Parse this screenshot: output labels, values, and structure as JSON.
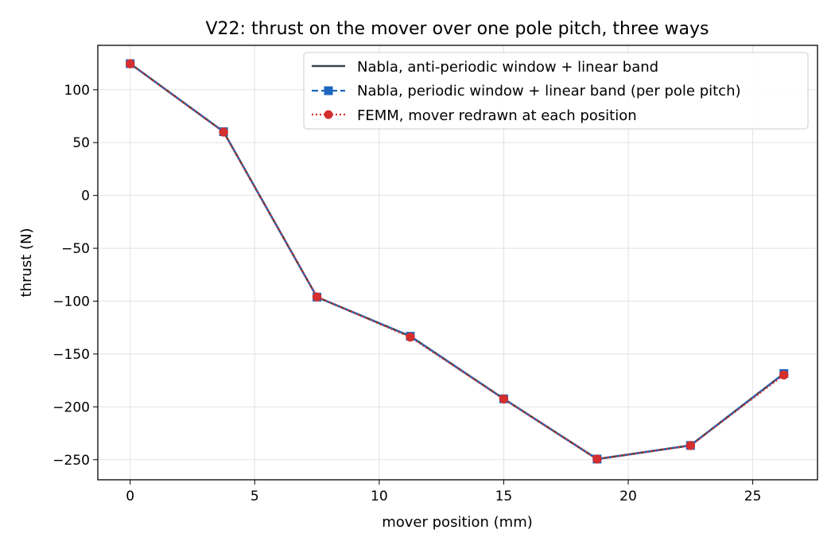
{
  "chart_data": {
    "type": "line",
    "title": "V22: thrust on the mover over one pole pitch, three ways",
    "xlabel": "mover position (mm)",
    "ylabel": "thrust (N)",
    "xlim": [
      -1.3,
      27.6
    ],
    "ylim": [
      -269,
      142
    ],
    "xticks": [
      0,
      5,
      10,
      15,
      20,
      25
    ],
    "xtick_labels": [
      "0",
      "5",
      "10",
      "15",
      "20",
      "25"
    ],
    "yticks": [
      100,
      50,
      0,
      -50,
      -100,
      -150,
      -200,
      -250
    ],
    "ytick_labels": [
      "100",
      "50",
      "0",
      "−50",
      "−100",
      "−150",
      "−200",
      "−250"
    ],
    "grid": true,
    "legend_position": "upper-right",
    "x": [
      0,
      3.75,
      7.5,
      11.25,
      15,
      18.75,
      22.5,
      26.25
    ],
    "series": [
      {
        "name": "Nabla, anti-periodic window + linear band",
        "values": [
          124.7,
          60.3,
          -96.2,
          -133.2,
          -192.4,
          -249.4,
          -236.5,
          -168.5
        ],
        "color": "#37474f",
        "style": "solid",
        "marker": "none"
      },
      {
        "name": "Nabla, periodic window + linear band (per pole pitch)",
        "values": [
          124.7,
          60.3,
          -96.2,
          -133.2,
          -192.4,
          -249.4,
          -236.5,
          -168.5
        ],
        "color": "#1f66c1",
        "style": "dashed",
        "marker": "square"
      },
      {
        "name": "FEMM, mover redrawn at each position",
        "values": [
          124.6,
          60.0,
          -96.0,
          -134.0,
          -192.6,
          -249.4,
          -236.6,
          -169.8
        ],
        "color": "#d32f2f",
        "style": "dotted",
        "marker": "circle"
      }
    ]
  }
}
